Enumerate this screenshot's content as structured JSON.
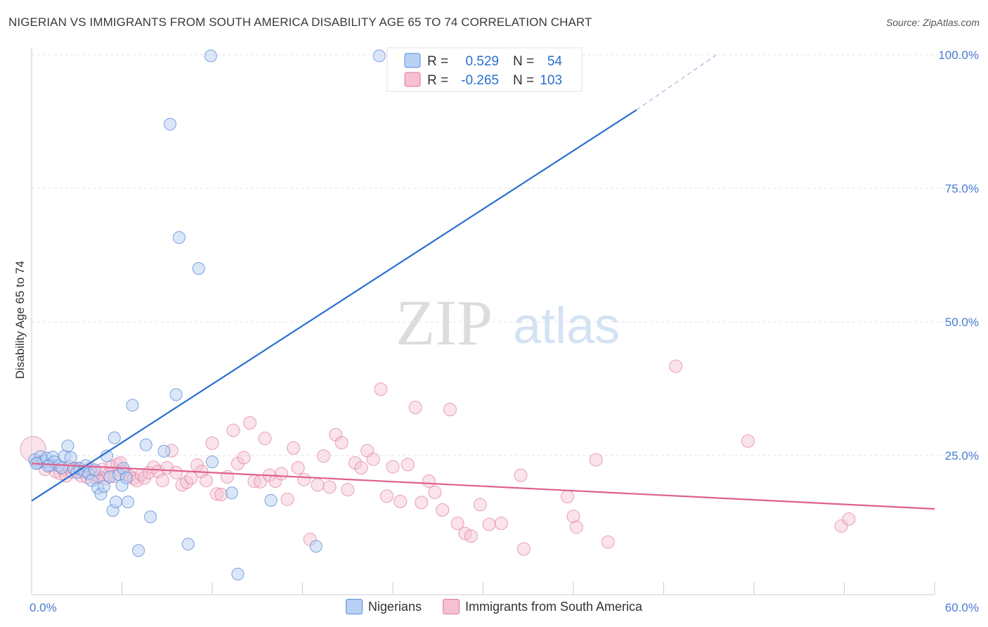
{
  "header": {
    "title": "NIGERIAN VS IMMIGRANTS FROM SOUTH AMERICA DISABILITY AGE 65 TO 74 CORRELATION CHART",
    "source": "Source: ZipAtlas.com"
  },
  "watermark": {
    "zip": "ZIP",
    "atlas": "atlas"
  },
  "colors": {
    "blue": "#5b8fd6",
    "blue_fill": "#b8d0f3",
    "blue_line": "#2a6fd0",
    "pink": "#e07aa0",
    "pink_fill": "#f5c0d3",
    "pink_line": "#e0608c",
    "axis_text": "#4a7bd0"
  },
  "legend": {
    "rows": [
      {
        "r_label": "R =",
        "r_value": "0.529",
        "n_label": "N =",
        "n_value": "54"
      },
      {
        "r_label": "R =",
        "r_value": "-0.265",
        "n_label": "N =",
        "n_value": "103"
      }
    ]
  },
  "bottom_legend": [
    "Nigerians",
    "Immigrants from South America"
  ],
  "chart_data": {
    "type": "scatter",
    "title": "NIGERIAN VS IMMIGRANTS FROM SOUTH AMERICA DISABILITY AGE 65 TO 74 CORRELATION CHART",
    "xlabel": "",
    "ylabel": "Disability Age 65 to 74",
    "xlim": [
      0,
      60
    ],
    "ylim": [
      0,
      100
    ],
    "x_tick_labels": [
      "0.0%",
      "60.0%"
    ],
    "y_ticks": [
      25,
      50,
      75,
      100
    ],
    "y_tick_labels": [
      "25.0%",
      "50.0%",
      "75.0%",
      "100.0%"
    ],
    "grid": true,
    "series": [
      {
        "name": "Nigerians",
        "r": 0.529,
        "n": 54,
        "trend": {
          "x": [
            0,
            40.2
          ],
          "y": [
            16.5,
            89.7
          ],
          "dashed_to": [
            45.5,
            100
          ]
        },
        "points": [
          [
            0.2,
            24.2
          ],
          [
            0.4,
            23.6
          ],
          [
            0.6,
            24.8
          ],
          [
            0.8,
            23.9
          ],
          [
            1.0,
            24.5
          ],
          [
            1.2,
            23.2
          ],
          [
            1.4,
            24.7
          ],
          [
            1.5,
            23.8
          ],
          [
            1.8,
            23.1
          ],
          [
            2.0,
            22.7
          ],
          [
            2.2,
            24.9
          ],
          [
            2.4,
            26.8
          ],
          [
            2.6,
            24.6
          ],
          [
            2.8,
            22.6
          ],
          [
            3.0,
            21.8
          ],
          [
            3.2,
            22.6
          ],
          [
            3.5,
            22.1
          ],
          [
            3.6,
            23.1
          ],
          [
            3.8,
            21.6
          ],
          [
            4.0,
            20.3
          ],
          [
            4.2,
            22.3
          ],
          [
            4.4,
            18.9
          ],
          [
            4.6,
            17.8
          ],
          [
            4.8,
            19.2
          ],
          [
            5.0,
            24.9
          ],
          [
            5.2,
            21.0
          ],
          [
            5.4,
            14.7
          ],
          [
            5.5,
            28.3
          ],
          [
            5.6,
            16.3
          ],
          [
            5.8,
            21.4
          ],
          [
            6.0,
            19.4
          ],
          [
            6.1,
            22.6
          ],
          [
            6.3,
            20.8
          ],
          [
            6.4,
            16.3
          ],
          [
            6.7,
            34.4
          ],
          [
            7.1,
            7.2
          ],
          [
            7.6,
            27.0
          ],
          [
            7.9,
            13.5
          ],
          [
            8.8,
            25.8
          ],
          [
            9.2,
            87.0
          ],
          [
            9.6,
            36.4
          ],
          [
            9.8,
            65.8
          ],
          [
            10.4,
            8.4
          ],
          [
            11.1,
            60.0
          ],
          [
            11.9,
            99.8
          ],
          [
            12.0,
            23.8
          ],
          [
            13.3,
            18.0
          ],
          [
            13.7,
            2.8
          ],
          [
            15.9,
            16.6
          ],
          [
            18.9,
            8.0
          ],
          [
            23.1,
            99.8
          ],
          [
            32.8,
            99.8
          ],
          [
            0.3,
            23.5
          ],
          [
            1.1,
            23.0
          ]
        ]
      },
      {
        "name": "Immigrants from South America",
        "r": -0.265,
        "n": 103,
        "trend": {
          "x": [
            0,
            60
          ],
          "y": [
            23.5,
            15.0
          ]
        },
        "points": [
          [
            0.1,
            26.2
          ],
          [
            0.5,
            23.8
          ],
          [
            0.9,
            22.4
          ],
          [
            1.3,
            23.2
          ],
          [
            1.6,
            22.0
          ],
          [
            1.9,
            21.6
          ],
          [
            2.1,
            22.4
          ],
          [
            2.3,
            21.2
          ],
          [
            2.5,
            22.9
          ],
          [
            2.7,
            21.9
          ],
          [
            2.9,
            22.3
          ],
          [
            3.1,
            22.6
          ],
          [
            3.3,
            21.2
          ],
          [
            3.4,
            21.9
          ],
          [
            3.7,
            20.9
          ],
          [
            3.9,
            22.6
          ],
          [
            4.1,
            21.5
          ],
          [
            4.3,
            20.8
          ],
          [
            4.5,
            21.0
          ],
          [
            4.7,
            22.4
          ],
          [
            4.9,
            20.7
          ],
          [
            5.1,
            21.4
          ],
          [
            5.3,
            22.9
          ],
          [
            5.5,
            21.1
          ],
          [
            5.7,
            23.3
          ],
          [
            5.9,
            23.6
          ],
          [
            6.1,
            22.0
          ],
          [
            6.3,
            21.3
          ],
          [
            6.5,
            21.2
          ],
          [
            6.8,
            20.7
          ],
          [
            7.0,
            20.3
          ],
          [
            7.3,
            21.4
          ],
          [
            7.5,
            20.8
          ],
          [
            7.8,
            21.8
          ],
          [
            8.1,
            22.8
          ],
          [
            8.4,
            22.0
          ],
          [
            8.7,
            20.3
          ],
          [
            9.0,
            22.7
          ],
          [
            9.3,
            25.9
          ],
          [
            9.6,
            21.8
          ],
          [
            10.0,
            19.5
          ],
          [
            10.3,
            20.0
          ],
          [
            10.6,
            20.8
          ],
          [
            11.0,
            23.2
          ],
          [
            11.3,
            22.0
          ],
          [
            11.6,
            20.3
          ],
          [
            12.0,
            27.3
          ],
          [
            12.3,
            17.8
          ],
          [
            12.6,
            17.7
          ],
          [
            13.0,
            21.0
          ],
          [
            13.4,
            29.7
          ],
          [
            13.7,
            23.5
          ],
          [
            14.1,
            24.6
          ],
          [
            14.5,
            31.1
          ],
          [
            14.8,
            20.2
          ],
          [
            15.2,
            20.1
          ],
          [
            15.5,
            28.2
          ],
          [
            15.8,
            21.3
          ],
          [
            16.2,
            20.2
          ],
          [
            16.6,
            21.6
          ],
          [
            17.0,
            16.8
          ],
          [
            17.4,
            26.4
          ],
          [
            17.7,
            22.7
          ],
          [
            18.1,
            20.5
          ],
          [
            18.5,
            9.3
          ],
          [
            19.0,
            19.5
          ],
          [
            19.4,
            24.9
          ],
          [
            19.8,
            19.1
          ],
          [
            20.2,
            28.9
          ],
          [
            20.6,
            27.4
          ],
          [
            21.0,
            18.6
          ],
          [
            21.5,
            23.6
          ],
          [
            21.9,
            22.7
          ],
          [
            22.3,
            25.9
          ],
          [
            22.7,
            24.3
          ],
          [
            23.2,
            37.4
          ],
          [
            23.6,
            17.4
          ],
          [
            24.0,
            22.9
          ],
          [
            24.5,
            16.4
          ],
          [
            25.0,
            23.3
          ],
          [
            25.5,
            34.0
          ],
          [
            25.9,
            16.2
          ],
          [
            26.4,
            20.2
          ],
          [
            26.8,
            18.1
          ],
          [
            27.3,
            14.8
          ],
          [
            27.8,
            33.6
          ],
          [
            28.3,
            12.3
          ],
          [
            28.8,
            10.4
          ],
          [
            29.2,
            9.9
          ],
          [
            29.8,
            15.8
          ],
          [
            30.4,
            12.1
          ],
          [
            31.2,
            12.3
          ],
          [
            32.5,
            21.3
          ],
          [
            32.7,
            7.5
          ],
          [
            35.6,
            17.3
          ],
          [
            36.0,
            13.6
          ],
          [
            36.2,
            11.6
          ],
          [
            37.5,
            24.2
          ],
          [
            38.3,
            8.8
          ],
          [
            42.8,
            41.7
          ],
          [
            47.6,
            27.7
          ],
          [
            53.8,
            11.8
          ],
          [
            54.3,
            13.1
          ]
        ]
      }
    ]
  }
}
